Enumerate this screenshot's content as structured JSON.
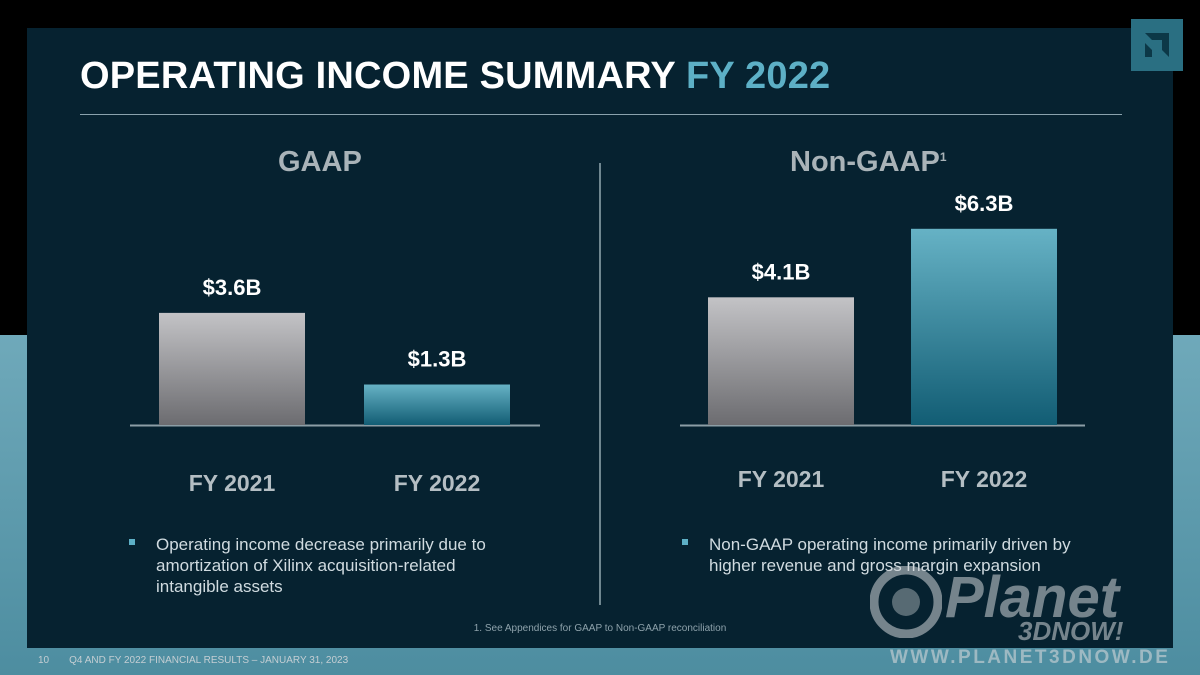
{
  "slide": {
    "title_main": "OPERATING INCOME SUMMARY",
    "title_accent": "FY 2022",
    "footnote": "1. See Appendices for GAAP to Non-GAAP reconciliation",
    "page_number": "10",
    "footer_text": "Q4 AND FY 2022 FINANCIAL RESULTS – JANUARY 31, 2023",
    "logo_icon": "amd-logo-icon",
    "colors": {
      "background": "#062230",
      "accent": "#5db0c6",
      "bar_2021": "#a9a9ad",
      "bar_2022": "#3d8ca3"
    }
  },
  "gaap": {
    "heading": "GAAP",
    "bullet": "Operating income decrease primarily due to amortization of Xilinx acquisition-related intangible assets"
  },
  "non_gaap": {
    "heading": "Non-GAAP",
    "heading_sup": "1",
    "bullet": "Non-GAAP operating income primarily driven by higher revenue and gross margin expansion"
  },
  "chart_data": [
    {
      "type": "bar",
      "title": "GAAP",
      "categories": [
        "FY 2021",
        "FY 2022"
      ],
      "values": [
        3.6,
        1.3
      ],
      "data_labels": [
        "$3.6B",
        "$1.3B"
      ],
      "ylim": [
        0,
        7
      ],
      "grid": false
    },
    {
      "type": "bar",
      "title": "Non-GAAP",
      "categories": [
        "FY 2021",
        "FY 2022"
      ],
      "values": [
        4.1,
        6.3
      ],
      "data_labels": [
        "$4.1B",
        "$6.3B"
      ],
      "ylim": [
        0,
        7
      ],
      "grid": false
    }
  ],
  "watermark": {
    "brand": "Planet",
    "sub": "3DNOW!",
    "url": "WWW.PLANET3DNOW.DE"
  }
}
